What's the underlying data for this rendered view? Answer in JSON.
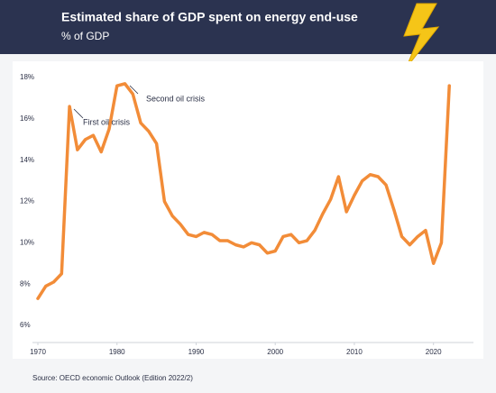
{
  "chart_data": {
    "type": "line",
    "title": "Estimated share of GDP spent on energy end-use",
    "subtitle": "% of GDP",
    "source": "Source: OECD economic Outlook (Edition 2022/2)",
    "annotations": [
      "First oil crisis",
      "Second oil crisis"
    ],
    "x": [
      1970,
      1971,
      1972,
      1973,
      1974,
      1975,
      1976,
      1977,
      1978,
      1979,
      1980,
      1981,
      1982,
      1983,
      1984,
      1985,
      1986,
      1987,
      1988,
      1989,
      1990,
      1991,
      1992,
      1993,
      1994,
      1995,
      1996,
      1997,
      1998,
      1999,
      2000,
      2001,
      2002,
      2003,
      2004,
      2005,
      2006,
      2007,
      2008,
      2009,
      2010,
      2011,
      2012,
      2013,
      2014,
      2015,
      2016,
      2017,
      2018,
      2019,
      2020,
      2021,
      2022
    ],
    "series": [
      {
        "name": "Share of GDP",
        "color": "#f28c38",
        "values": [
          7.3,
          7.9,
          8.1,
          8.5,
          16.6,
          14.5,
          15.0,
          15.2,
          14.4,
          15.5,
          17.6,
          17.7,
          17.2,
          15.8,
          15.4,
          14.8,
          12.0,
          11.3,
          10.9,
          10.4,
          10.3,
          10.5,
          10.4,
          10.1,
          10.1,
          9.9,
          9.8,
          10.0,
          9.9,
          9.5,
          9.6,
          10.3,
          10.4,
          10.0,
          10.1,
          10.6,
          11.4,
          12.1,
          13.2,
          11.5,
          12.3,
          13.0,
          13.3,
          13.2,
          12.8,
          11.6,
          10.3,
          9.9,
          10.3,
          10.6,
          9.0,
          10.0,
          17.6
        ]
      }
    ],
    "xlim": [
      1970,
      2023
    ],
    "xticks": [
      1970,
      1980,
      1990,
      2000,
      2010,
      2020
    ],
    "ylim": [
      6,
      18
    ],
    "yticks": [
      {
        "value": 6,
        "label": "6%"
      },
      {
        "value": 8,
        "label": "8%"
      },
      {
        "value": 10,
        "label": "10%"
      },
      {
        "value": 12,
        "label": "12%"
      },
      {
        "value": 14,
        "label": "14%"
      },
      {
        "value": 16,
        "label": "16%"
      },
      {
        "value": 18,
        "label": "18%"
      }
    ],
    "grid": false
  }
}
